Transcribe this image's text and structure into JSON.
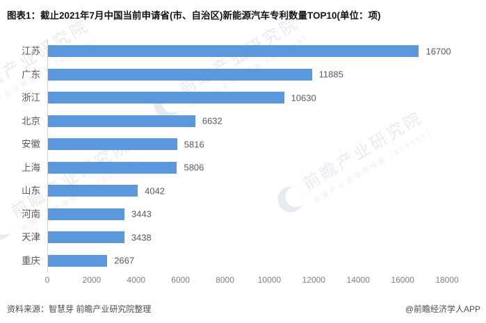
{
  "title": "图表1：截止2021年7月中国当前申请省(市、自治区)新能源汽车专利数量TOP10(单位：项)",
  "chart_data": {
    "type": "bar",
    "orientation": "horizontal",
    "title": "截止2021年7月中国当前申请省(市、自治区)新能源汽车专利数量TOP10",
    "unit": "项",
    "categories": [
      "江苏",
      "广东",
      "浙江",
      "北京",
      "安徽",
      "上海",
      "山东",
      "河南",
      "天津",
      "重庆"
    ],
    "values": [
      16700,
      11885,
      10630,
      6632,
      5816,
      5806,
      4042,
      3443,
      3438,
      2667
    ],
    "xlabel": "",
    "ylabel": "",
    "xlim": [
      0,
      18000
    ],
    "xticks": [
      0,
      2000,
      4000,
      6000,
      8000,
      10000,
      12000,
      14000,
      16000,
      18000
    ],
    "grid": false,
    "legend": "none",
    "value_labels": true,
    "bar_color": "#5b97dc"
  },
  "watermark": {
    "big_text": "前瞻产业研究院",
    "small_text": "中国产业咨询领导者（839599）"
  },
  "footer": {
    "source": "资料来源：智慧芽 前瞻产业研究院整理",
    "credit": "@前瞻经济学人APP"
  },
  "colors": {
    "bar": "#5b97dc",
    "category_label": "#595959",
    "value_label": "#595959",
    "tick_label": "#7f7f7f",
    "axis_line": "#d2d2d2",
    "watermark": "#e7eaf1",
    "title": "#141414"
  }
}
